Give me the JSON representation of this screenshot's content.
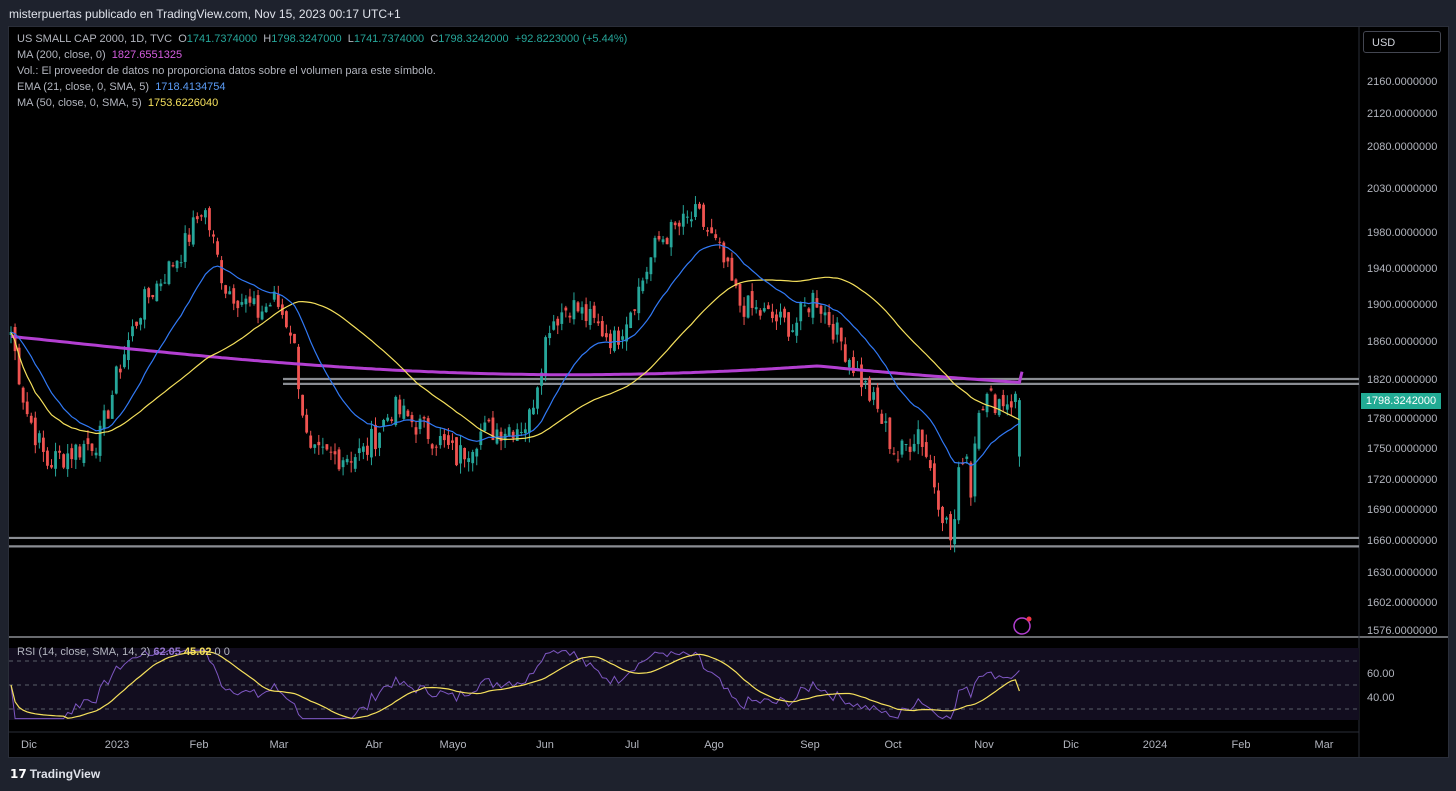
{
  "header": {
    "attribution": "misterpuertas publicado en TradingView.com, Nov 15, 2023 00:17 UTC+1"
  },
  "legend": {
    "symbol": "US SMALL CAP 2000, 1D, TVC",
    "open_label": "O",
    "open": "1741.7374000",
    "high_label": "H",
    "high": "1798.3247000",
    "low_label": "L",
    "low": "1741.7374000",
    "close_label": "C",
    "close": "1798.3242000",
    "change": "+92.8223000 (+5.44%)",
    "ma200_label": "MA (200, close, 0)",
    "ma200_value": "1827.6551325",
    "vol_note": "Vol.: El proveedor de datos no proporciona datos sobre el volumen para este símbolo.",
    "ema21_label": "EMA (21, close, 0, SMA, 5)",
    "ema21_value": "1718.4134754",
    "ma50_label": "MA (50, close, 0, SMA, 5)",
    "ma50_value": "1753.6226040"
  },
  "currency_button": "USD",
  "last_price_tag": "1798.3242000",
  "rsi_legend": {
    "label": "RSI (14, close, SMA, 14, 2)",
    "rsi": "62.05",
    "ma": "45.02",
    "extra": "0 0"
  },
  "footer": {
    "logo_text": "TradingView"
  },
  "colors": {
    "up": "#26a69a",
    "down": "#ef5350",
    "ma200": "#b33fd1",
    "ema21": "#3179f5",
    "ma50": "#f5e05c",
    "rsi": "#7e57c2",
    "rsi_ma": "#f5e05c",
    "support": "#8a8d93"
  },
  "chart_data": {
    "type": "candlestick",
    "title": "US SMALL CAP 2000, 1D, TVC",
    "y_ticks": [
      "2160.0000000",
      "2120.0000000",
      "2080.0000000",
      "2030.0000000",
      "1980.0000000",
      "1940.0000000",
      "1900.0000000",
      "1860.0000000",
      "1820.0000000",
      "1780.0000000",
      "1750.0000000",
      "1720.0000000",
      "1690.0000000",
      "1660.0000000",
      "1630.0000000",
      "1602.0000000",
      "1576.0000000"
    ],
    "x_ticks": [
      "Dic",
      "2023",
      "Feb",
      "Mar",
      "Abr",
      "Mayo",
      "Jun",
      "Jul",
      "Ago",
      "Sep",
      "Oct",
      "Nov",
      "Dic",
      "2024",
      "Feb",
      "Mar"
    ],
    "price_path": [
      [
        "Dic",
        1870
      ],
      [
        "Dic",
        1790
      ],
      [
        "Dic",
        1735
      ],
      [
        "2023",
        1760
      ],
      [
        "2023",
        1840
      ],
      [
        "2023",
        1900
      ],
      [
        "Feb",
        1960
      ],
      [
        "Feb",
        2010
      ],
      [
        "Feb",
        1920
      ],
      [
        "Mar",
        1890
      ],
      [
        "Mar",
        1905
      ],
      [
        "Mar",
        1870
      ],
      [
        "Mar",
        1740
      ],
      [
        "Abr",
        1745
      ],
      [
        "Abr",
        1790
      ],
      [
        "Mayo",
        1760
      ],
      [
        "Mayo",
        1740
      ],
      [
        "Mayo",
        1765
      ],
      [
        "Jun",
        1775
      ],
      [
        "Jun",
        1880
      ],
      [
        "Jun",
        1900
      ],
      [
        "Jul",
        1860
      ],
      [
        "Jul",
        1910
      ],
      [
        "Jul",
        1970
      ],
      [
        "Ago",
        2000
      ],
      [
        "Ago",
        1960
      ],
      [
        "Ago",
        1900
      ],
      [
        "Sep",
        1875
      ],
      [
        "Sep",
        1910
      ],
      [
        "Sep",
        1870
      ],
      [
        "Oct",
        1790
      ],
      [
        "Oct",
        1740
      ],
      [
        "Oct",
        1770
      ],
      [
        "Nov",
        1655
      ],
      [
        "Nov",
        1720
      ],
      [
        "Nov",
        1760
      ],
      [
        "Nov",
        1705
      ],
      [
        "Nov",
        1798.32
      ]
    ],
    "ma200": {
      "name": "MA (200, close, 0)",
      "last": 1827.6551325
    },
    "ema21": {
      "name": "EMA (21, close, 0, SMA, 5)",
      "last": 1718.4134754
    },
    "ma50": {
      "name": "MA (50, close, 0, SMA, 5)",
      "last": 1753.622604
    },
    "support_levels": [
      1820,
      1815,
      1662,
      1654
    ],
    "rsi": {
      "name": "RSI (14, close, SMA, 14, 2)",
      "ticks": [
        "60.00",
        "40.00"
      ],
      "last": 62.05,
      "ma_last": 45.02
    }
  }
}
